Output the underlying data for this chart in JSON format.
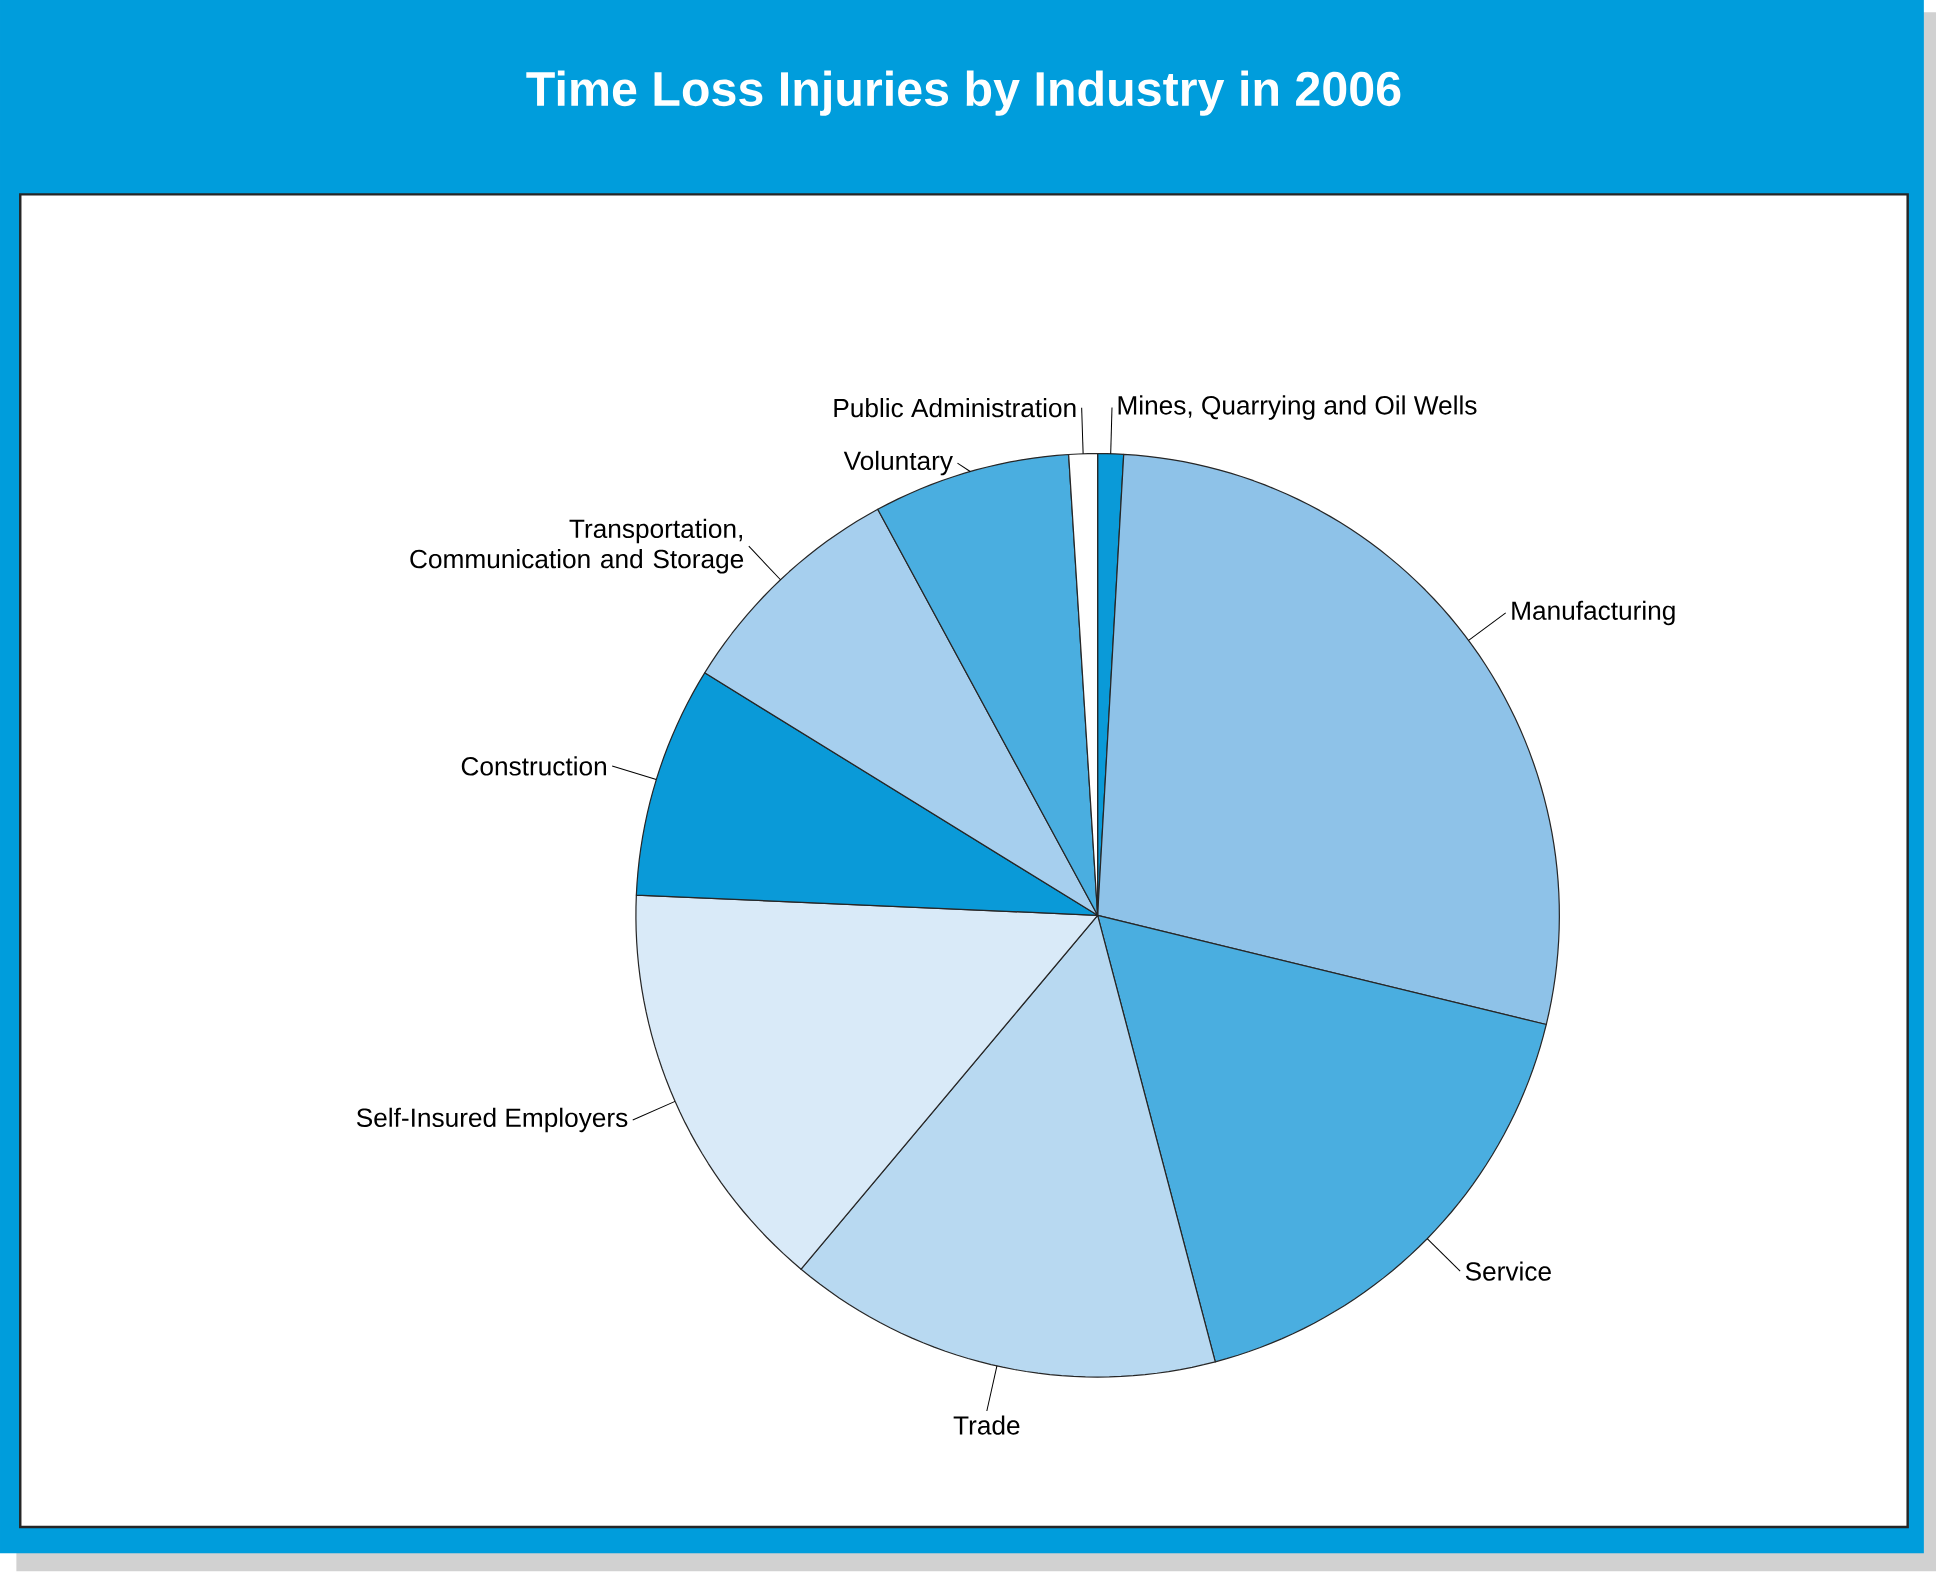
{
  "chart_data": {
    "type": "pie",
    "title": "Time Loss Injuries by Industry in 2006",
    "categories": [
      "Mines, Quarrying and Oil Wells",
      "Manufacturing",
      "Service",
      "Trade",
      "Self-Insured Employers",
      "Construction",
      "Transportation, Communication and Storage",
      "Voluntary",
      "Public Administration"
    ],
    "values": [
      0.9,
      27.9,
      17.1,
      15.2,
      14.6,
      8.1,
      8.3,
      6.9,
      1.0
    ],
    "colors": [
      "#0a9ad8",
      "#8ec2e8",
      "#4aaee0",
      "#b8d9f1",
      "#d9eaf8",
      "#0a9ad8",
      "#a6cfee",
      "#4aaee0",
      "#ffffff"
    ]
  }
}
